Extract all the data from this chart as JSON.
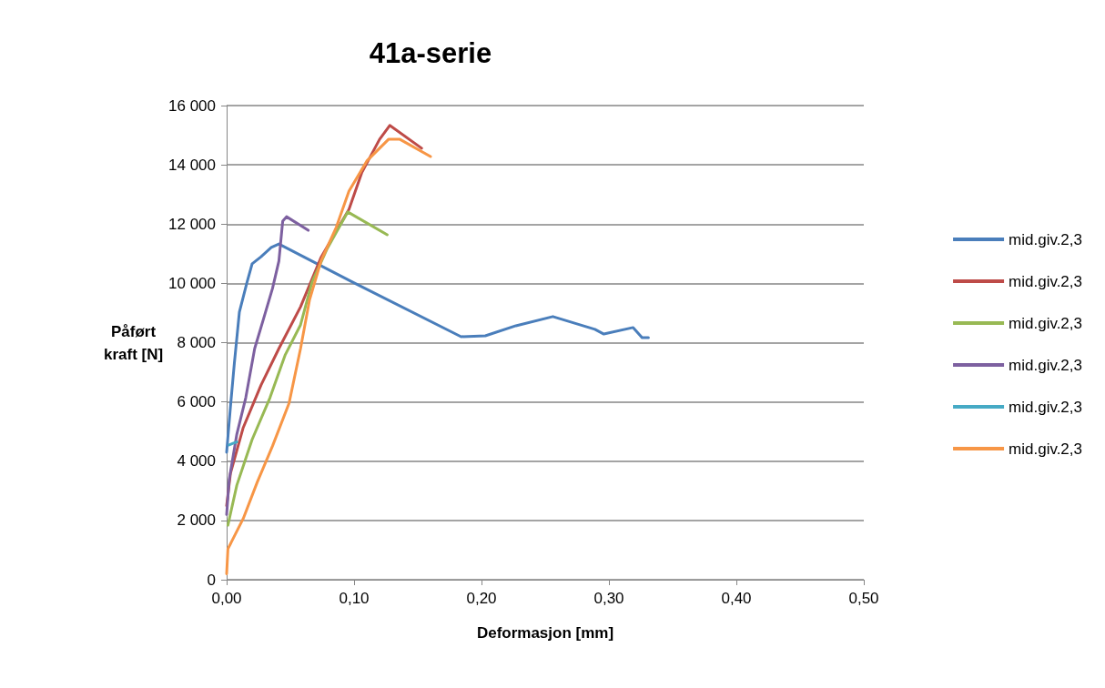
{
  "chart_data": {
    "type": "line",
    "title": "41a-serie",
    "xlabel": "Deformasjon [mm]",
    "ylabel": "Påført kraft [N]",
    "xlim": [
      0,
      0.5
    ],
    "xticks": [
      {
        "value": 0,
        "label": "0,00"
      },
      {
        "value": 0.1,
        "label": "0,10"
      },
      {
        "value": 0.2,
        "label": "0,20"
      },
      {
        "value": 0.3,
        "label": "0,30"
      },
      {
        "value": 0.4,
        "label": "0,40"
      },
      {
        "value": 0.5,
        "label": "0,50"
      }
    ],
    "ylim": [
      0,
      16000
    ],
    "yticks": [
      0,
      {
        "value": 2000,
        "label": "2 000"
      },
      {
        "value": 4000,
        "label": "4 000"
      },
      {
        "value": 6000,
        "label": "6 000"
      },
      {
        "value": 8000,
        "label": "8 000"
      },
      {
        "value": 10000,
        "label": "10 000"
      },
      {
        "value": 12000,
        "label": "12 000"
      },
      {
        "value": 14000,
        "label": "14 000"
      },
      {
        "value": 16000,
        "label": "16 000"
      }
    ],
    "grid": "y",
    "legend": "right",
    "marker": "none",
    "line_style": "solid",
    "series": [
      {
        "name": "mid.giv.2,3",
        "color": "#4a7ebb",
        "x": [
          0,
          0.003,
          0.006,
          0.01,
          0.016,
          0.02,
          0.027,
          0.035,
          0.041,
          0.099,
          0.184,
          0.203,
          0.227,
          0.256,
          0.289,
          0.296,
          0.319,
          0.326,
          0.331
        ],
        "values": [
          4300,
          5840,
          7280,
          9030,
          10040,
          10660,
          10900,
          11210,
          11330,
          10040,
          8200,
          8230,
          8570,
          8880,
          8450,
          8290,
          8510,
          8170,
          8170
        ]
      },
      {
        "name": "mid.giv.2,3",
        "color": "#be4b48",
        "x": [
          0,
          0.003,
          0.013,
          0.027,
          0.041,
          0.058,
          0.074,
          0.096,
          0.106,
          0.12,
          0.128,
          0.153
        ],
        "values": [
          2500,
          3590,
          5130,
          6570,
          7800,
          9210,
          10870,
          12500,
          13730,
          14860,
          15330,
          14560
        ]
      },
      {
        "name": "mid.giv.2,3",
        "color": "#98b954",
        "x": [
          0.001,
          0.008,
          0.02,
          0.034,
          0.046,
          0.058,
          0.067,
          0.079,
          0.095,
          0.126
        ],
        "values": [
          1840,
          3190,
          4730,
          6140,
          7590,
          8600,
          10040,
          11180,
          12410,
          11640
        ]
      },
      {
        "name": "mid.giv.2,3",
        "color": "#7d60a0",
        "x": [
          0,
          0.002,
          0.008,
          0.015,
          0.022,
          0.029,
          0.036,
          0.041,
          0.044,
          0.047,
          0.064
        ],
        "values": [
          2200,
          3380,
          4910,
          6140,
          7800,
          8810,
          9830,
          10750,
          12100,
          12250,
          11790
        ]
      },
      {
        "name": "mid.giv.2,3",
        "color": "#46aac5",
        "x": [
          0.002,
          0.005,
          0.008
        ],
        "values": [
          4550,
          4600,
          4650
        ]
      },
      {
        "name": "mid.giv.2,3",
        "color": "#f79646",
        "x": [
          0,
          0.001,
          0.013,
          0.024,
          0.036,
          0.049,
          0.058,
          0.065,
          0.074,
          0.086,
          0.096,
          0.11,
          0.127,
          0.136,
          0.16
        ],
        "values": [
          200,
          1040,
          2060,
          3290,
          4510,
          5960,
          7800,
          9430,
          10750,
          11890,
          13110,
          14130,
          14860,
          14860,
          14280
        ]
      }
    ]
  }
}
